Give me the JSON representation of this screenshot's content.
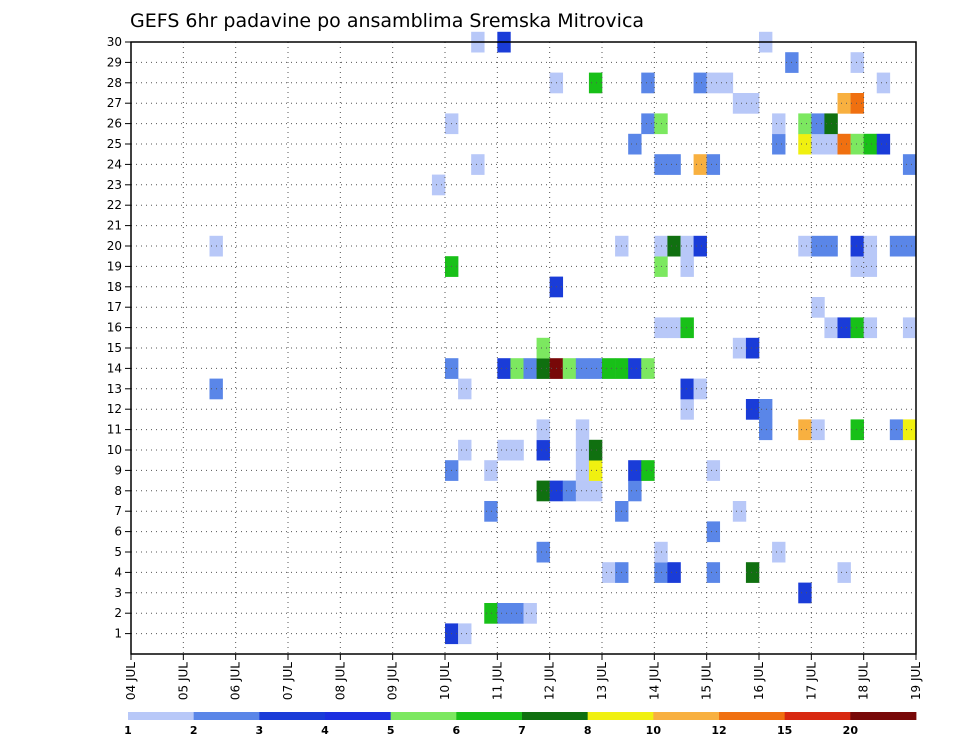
{
  "chart_data": {
    "type": "heatmap",
    "title": "GEFS 6hr padavine po ansamblima Sremska Mitrovica",
    "xlabel": "",
    "ylabel": "",
    "x_ticks": [
      "04 JUL",
      "05 JUL",
      "06 JUL",
      "07 JUL",
      "08 JUL",
      "09 JUL",
      "10 JUL",
      "11 JUL",
      "12 JUL",
      "13 JUL",
      "14 JUL",
      "15 JUL",
      "16 JUL",
      "17 JUL",
      "18 JUL",
      "19 JUL"
    ],
    "y_ticks": [
      "1",
      "2",
      "3",
      "4",
      "5",
      "6",
      "7",
      "8",
      "9",
      "10",
      "11",
      "12",
      "13",
      "14",
      "15",
      "16",
      "17",
      "18",
      "19",
      "20",
      "21",
      "22",
      "23",
      "24",
      "25",
      "26",
      "27",
      "28",
      "29",
      "30"
    ],
    "xlim_days": [
      0,
      15
    ],
    "ylim": [
      0.5,
      30.5
    ],
    "grid": true,
    "colorbar": {
      "levels": [
        "1",
        "2",
        "3",
        "4",
        "5",
        "6",
        "7",
        "8",
        "10",
        "12",
        "15",
        "20"
      ],
      "colors": [
        "#b8c8f8",
        "#5a86e8",
        "#1a3cd8",
        "#1c2fe0",
        "#7ce860",
        "#18c018",
        "#107010",
        "#f0f010",
        "#f8b040",
        "#f07010",
        "#d82810",
        "#780808"
      ]
    },
    "cells": [
      {
        "d": "10 JUL 00",
        "m": 1,
        "v": 3
      },
      {
        "d": "10 JUL 06",
        "m": 1,
        "v": 1
      },
      {
        "d": "10 JUL 18",
        "m": 2,
        "v": 6
      },
      {
        "d": "11 JUL 00",
        "m": 2,
        "v": 2
      },
      {
        "d": "11 JUL 06",
        "m": 2,
        "v": 2
      },
      {
        "d": "11 JUL 12",
        "m": 2,
        "v": 1
      },
      {
        "d": "16 JUL 18",
        "m": 3,
        "v": 3
      },
      {
        "d": "13 JUL 00",
        "m": 4,
        "v": 1
      },
      {
        "d": "13 JUL 06",
        "m": 4,
        "v": 2
      },
      {
        "d": "14 JUL 00",
        "m": 4,
        "v": 2
      },
      {
        "d": "14 JUL 06",
        "m": 4,
        "v": 3
      },
      {
        "d": "15 JUL 00",
        "m": 4,
        "v": 2
      },
      {
        "d": "15 JUL 18",
        "m": 4,
        "v": 7
      },
      {
        "d": "17 JUL 12",
        "m": 4,
        "v": 1
      },
      {
        "d": "11 JUL 18",
        "m": 5,
        "v": 2
      },
      {
        "d": "14 JUL 00",
        "m": 5,
        "v": 1
      },
      {
        "d": "16 JUL 06",
        "m": 5,
        "v": 1
      },
      {
        "d": "15 JUL 00",
        "m": 6,
        "v": 2
      },
      {
        "d": "10 JUL 18",
        "m": 7,
        "v": 2
      },
      {
        "d": "13 JUL 06",
        "m": 7,
        "v": 2
      },
      {
        "d": "15 JUL 12",
        "m": 7,
        "v": 1
      },
      {
        "d": "11 JUL 18",
        "m": 8,
        "v": 7
      },
      {
        "d": "12 JUL 00",
        "m": 8,
        "v": 3
      },
      {
        "d": "12 JUL 06",
        "m": 8,
        "v": 2
      },
      {
        "d": "12 JUL 12",
        "m": 8,
        "v": 1
      },
      {
        "d": "12 JUL 18",
        "m": 8,
        "v": 1
      },
      {
        "d": "13 JUL 12",
        "m": 8,
        "v": 2
      },
      {
        "d": "10 JUL 00",
        "m": 9,
        "v": 2
      },
      {
        "d": "10 JUL 18",
        "m": 9,
        "v": 1
      },
      {
        "d": "12 JUL 12",
        "m": 9,
        "v": 1
      },
      {
        "d": "12 JUL 18",
        "m": 9,
        "v": 8
      },
      {
        "d": "13 JUL 12",
        "m": 9,
        "v": 3
      },
      {
        "d": "13 JUL 18",
        "m": 9,
        "v": 6
      },
      {
        "d": "15 JUL 00",
        "m": 9,
        "v": 1
      },
      {
        "d": "10 JUL 06",
        "m": 10,
        "v": 1
      },
      {
        "d": "11 JUL 00",
        "m": 10,
        "v": 1
      },
      {
        "d": "11 JUL 06",
        "m": 10,
        "v": 1
      },
      {
        "d": "11 JUL 18",
        "m": 10,
        "v": 3
      },
      {
        "d": "12 JUL 12",
        "m": 10,
        "v": 1
      },
      {
        "d": "12 JUL 18",
        "m": 10,
        "v": 7
      },
      {
        "d": "11 JUL 18",
        "m": 11,
        "v": 1
      },
      {
        "d": "12 JUL 12",
        "m": 11,
        "v": 1
      },
      {
        "d": "16 JUL 00",
        "m": 11,
        "v": 2
      },
      {
        "d": "16 JUL 18",
        "m": 11,
        "v": 11
      },
      {
        "d": "17 JUL 00",
        "m": 11,
        "v": 1
      },
      {
        "d": "17 JUL 18",
        "m": 11,
        "v": 6
      },
      {
        "d": "18 JUL 12",
        "m": 11,
        "v": 2
      },
      {
        "d": "18 JUL 18",
        "m": 11,
        "v": 9
      },
      {
        "d": "14 JUL 12",
        "m": 12,
        "v": 1
      },
      {
        "d": "15 JUL 18",
        "m": 12,
        "v": 3
      },
      {
        "d": "16 JUL 00",
        "m": 12,
        "v": 2
      },
      {
        "d": "05 JUL 12",
        "m": 13,
        "v": 2
      },
      {
        "d": "10 JUL 06",
        "m": 13,
        "v": 1
      },
      {
        "d": "14 JUL 12",
        "m": 13,
        "v": 3
      },
      {
        "d": "14 JUL 18",
        "m": 13,
        "v": 1
      },
      {
        "d": "10 JUL 00",
        "m": 14,
        "v": 2
      },
      {
        "d": "11 JUL 00",
        "m": 14,
        "v": 3
      },
      {
        "d": "11 JUL 06",
        "m": 14,
        "v": 5
      },
      {
        "d": "11 JUL 12",
        "m": 14,
        "v": 2
      },
      {
        "d": "11 JUL 18",
        "m": 14,
        "v": 7
      },
      {
        "d": "12 JUL 00",
        "m": 14,
        "v": 25
      },
      {
        "d": "12 JUL 06",
        "m": 14,
        "v": 5
      },
      {
        "d": "12 JUL 12",
        "m": 14,
        "v": 2
      },
      {
        "d": "12 JUL 18",
        "m": 14,
        "v": 2
      },
      {
        "d": "13 JUL 00",
        "m": 14,
        "v": 6
      },
      {
        "d": "13 JUL 06",
        "m": 14,
        "v": 6
      },
      {
        "d": "13 JUL 12",
        "m": 14,
        "v": 3
      },
      {
        "d": "13 JUL 18",
        "m": 14,
        "v": 5
      },
      {
        "d": "11 JUL 18",
        "m": 15,
        "v": 5
      },
      {
        "d": "15 JUL 12",
        "m": 15,
        "v": 1
      },
      {
        "d": "15 JUL 18",
        "m": 15,
        "v": 3
      },
      {
        "d": "14 JUL 00",
        "m": 16,
        "v": 1
      },
      {
        "d": "14 JUL 06",
        "m": 16,
        "v": 1
      },
      {
        "d": "14 JUL 12",
        "m": 16,
        "v": 6
      },
      {
        "d": "17 JUL 06",
        "m": 16,
        "v": 1
      },
      {
        "d": "17 JUL 12",
        "m": 16,
        "v": 3
      },
      {
        "d": "17 JUL 18",
        "m": 16,
        "v": 6
      },
      {
        "d": "18 JUL 00",
        "m": 16,
        "v": 1
      },
      {
        "d": "18 JUL 18",
        "m": 16,
        "v": 1
      },
      {
        "d": "17 JUL 00",
        "m": 17,
        "v": 1
      },
      {
        "d": "12 JUL 00",
        "m": 18,
        "v": 3
      },
      {
        "d": "10 JUL 00",
        "m": 19,
        "v": 6
      },
      {
        "d": "14 JUL 00",
        "m": 19,
        "v": 5
      },
      {
        "d": "14 JUL 12",
        "m": 19,
        "v": 1
      },
      {
        "d": "17 JUL 18",
        "m": 19,
        "v": 1
      },
      {
        "d": "18 JUL 00",
        "m": 19,
        "v": 1
      },
      {
        "d": "05 JUL 12",
        "m": 20,
        "v": 1
      },
      {
        "d": "13 JUL 06",
        "m": 20,
        "v": 1
      },
      {
        "d": "14 JUL 00",
        "m": 20,
        "v": 1
      },
      {
        "d": "14 JUL 06",
        "m": 20,
        "v": 7
      },
      {
        "d": "14 JUL 12",
        "m": 20,
        "v": 1
      },
      {
        "d": "14 JUL 18",
        "m": 20,
        "v": 3
      },
      {
        "d": "16 JUL 18",
        "m": 20,
        "v": 1
      },
      {
        "d": "17 JUL 00",
        "m": 20,
        "v": 2
      },
      {
        "d": "17 JUL 06",
        "m": 20,
        "v": 2
      },
      {
        "d": "17 JUL 18",
        "m": 20,
        "v": 3
      },
      {
        "d": "18 JUL 00",
        "m": 20,
        "v": 1
      },
      {
        "d": "18 JUL 12",
        "m": 20,
        "v": 2
      },
      {
        "d": "18 JUL 18",
        "m": 20,
        "v": 2
      },
      {
        "d": "09 JUL 18",
        "m": 23,
        "v": 1
      },
      {
        "d": "10 JUL 12",
        "m": 24,
        "v": 1
      },
      {
        "d": "14 JUL 00",
        "m": 24,
        "v": 2
      },
      {
        "d": "14 JUL 06",
        "m": 24,
        "v": 2
      },
      {
        "d": "14 JUL 18",
        "m": 24,
        "v": 11
      },
      {
        "d": "15 JUL 00",
        "m": 24,
        "v": 2
      },
      {
        "d": "18 JUL 18",
        "m": 24,
        "v": 2
      },
      {
        "d": "13 JUL 12",
        "m": 25,
        "v": 2
      },
      {
        "d": "16 JUL 06",
        "m": 25,
        "v": 2
      },
      {
        "d": "16 JUL 18",
        "m": 25,
        "v": 9
      },
      {
        "d": "17 JUL 00",
        "m": 25,
        "v": 1
      },
      {
        "d": "17 JUL 06",
        "m": 25,
        "v": 1
      },
      {
        "d": "17 JUL 12",
        "m": 25,
        "v": 14
      },
      {
        "d": "17 JUL 18",
        "m": 25,
        "v": 5
      },
      {
        "d": "18 JUL 00",
        "m": 25,
        "v": 6
      },
      {
        "d": "18 JUL 06",
        "m": 25,
        "v": 3
      },
      {
        "d": "10 JUL 00",
        "m": 26,
        "v": 1
      },
      {
        "d": "13 JUL 18",
        "m": 26,
        "v": 2
      },
      {
        "d": "14 JUL 00",
        "m": 26,
        "v": 5
      },
      {
        "d": "16 JUL 06",
        "m": 26,
        "v": 1
      },
      {
        "d": "16 JUL 18",
        "m": 26,
        "v": 5
      },
      {
        "d": "17 JUL 00",
        "m": 26,
        "v": 2
      },
      {
        "d": "17 JUL 06",
        "m": 26,
        "v": 7
      },
      {
        "d": "15 JUL 12",
        "m": 27,
        "v": 1
      },
      {
        "d": "15 JUL 18",
        "m": 27,
        "v": 1
      },
      {
        "d": "17 JUL 12",
        "m": 27,
        "v": 11
      },
      {
        "d": "17 JUL 18",
        "m": 27,
        "v": 14
      },
      {
        "d": "12 JUL 00",
        "m": 28,
        "v": 1
      },
      {
        "d": "12 JUL 18",
        "m": 28,
        "v": 6
      },
      {
        "d": "13 JUL 18",
        "m": 28,
        "v": 2
      },
      {
        "d": "14 JUL 18",
        "m": 28,
        "v": 2
      },
      {
        "d": "15 JUL 00",
        "m": 28,
        "v": 1
      },
      {
        "d": "15 JUL 06",
        "m": 28,
        "v": 1
      },
      {
        "d": "18 JUL 06",
        "m": 28,
        "v": 1
      },
      {
        "d": "16 JUL 12",
        "m": 29,
        "v": 2
      },
      {
        "d": "17 JUL 18",
        "m": 29,
        "v": 1
      },
      {
        "d": "10 JUL 12",
        "m": 30,
        "v": 1
      },
      {
        "d": "11 JUL 00",
        "m": 30,
        "v": 3
      },
      {
        "d": "16 JUL 00",
        "m": 30,
        "v": 1
      }
    ]
  }
}
